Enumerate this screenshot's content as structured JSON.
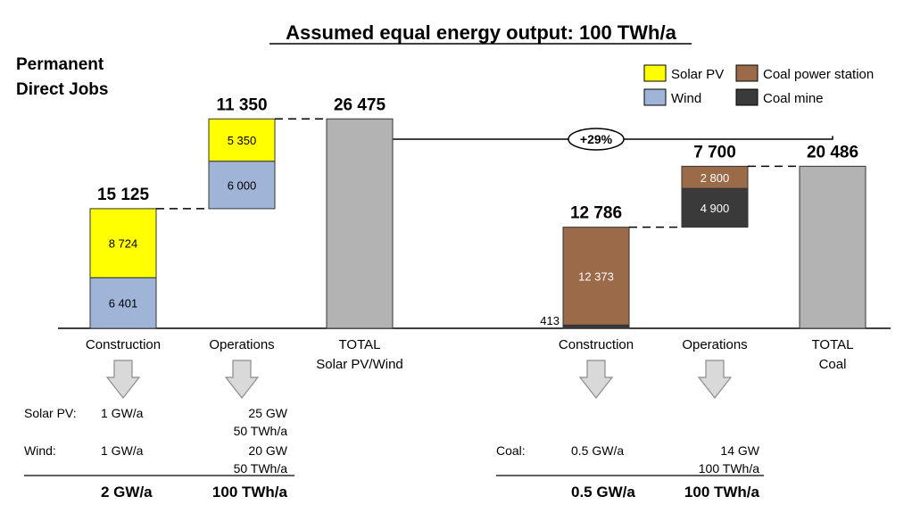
{
  "title": "Assumed equal energy output: 100 TWh/a",
  "subtitle": [
    "Permanent",
    "Direct Jobs"
  ],
  "legend": [
    {
      "label": "Solar PV",
      "color": "#ffff00"
    },
    {
      "label": "Coal power station",
      "color": "#9b6a48"
    },
    {
      "label": "Wind",
      "color": "#9fb4d6"
    },
    {
      "label": "Coal mine",
      "color": "#3a3a3a"
    }
  ],
  "colors": {
    "solar": "#ffff00",
    "wind": "#9fb4d6",
    "coal_power_station": "#9b6a48",
    "coal_mine": "#3a3a3a",
    "total": "#b3b3b3",
    "arrow_fill": "#d9d9d9",
    "arrow_stroke": "#8c8c8c"
  },
  "comparison_label": "+29%",
  "chart_data": {
    "type": "bar",
    "subtype": "waterfall",
    "title": "Assumed equal energy output: 100 TWh/a",
    "ylabel": "",
    "ylim": [
      0,
      30000
    ],
    "groups": [
      {
        "name": "Solar PV/Wind",
        "bars": [
          {
            "category": "Construction",
            "total_label": "15 125",
            "segments": [
              {
                "series": "Wind",
                "value": 6401,
                "label": "6 401"
              },
              {
                "series": "Solar PV",
                "value": 8724,
                "label": "8 724"
              }
            ]
          },
          {
            "category": "Operations",
            "total_label": "11 350",
            "segments": [
              {
                "series": "Wind",
                "value": 6000,
                "label": "6 000"
              },
              {
                "series": "Solar PV",
                "value": 5350,
                "label": "5 350"
              }
            ]
          },
          {
            "category": "TOTAL\nSolar PV/Wind",
            "total_label": "26 475",
            "is_total": true,
            "segments": [
              {
                "series": "Total",
                "value": 26475,
                "label": ""
              }
            ]
          }
        ]
      },
      {
        "name": "Coal",
        "bars": [
          {
            "category": "Construction",
            "total_label": "12 786",
            "segments": [
              {
                "series": "Coal mine",
                "value": 413,
                "label": "413"
              },
              {
                "series": "Coal power station",
                "value": 12373,
                "label": "12 373"
              }
            ]
          },
          {
            "category": "Operations",
            "total_label": "7 700",
            "segments": [
              {
                "series": "Coal mine",
                "value": 4900,
                "label": "4 900"
              },
              {
                "series": "Coal power station",
                "value": 2800,
                "label": "2 800"
              }
            ]
          },
          {
            "category": "TOTAL\nCoal",
            "total_label": "20 486",
            "is_total": true,
            "segments": [
              {
                "series": "Total",
                "value": 20486,
                "label": ""
              }
            ]
          }
        ]
      }
    ]
  },
  "tables": [
    {
      "rows": [
        {
          "label": "Solar PV:",
          "construction": "1 GW/a",
          "operations": [
            "25 GW",
            "50 TWh/a"
          ]
        },
        {
          "label": "Wind:",
          "construction": "1 GW/a",
          "operations": [
            "20 GW",
            "50 TWh/a"
          ]
        }
      ],
      "totals": {
        "construction": "2 GW/a",
        "operations": "100 TWh/a"
      }
    },
    {
      "rows": [
        {
          "label": "Coal:",
          "construction": "0.5 GW/a",
          "operations": [
            "14 GW",
            "100 TWh/a"
          ]
        }
      ],
      "totals": {
        "construction": "0.5 GW/a",
        "operations": "100 TWh/a"
      }
    }
  ]
}
